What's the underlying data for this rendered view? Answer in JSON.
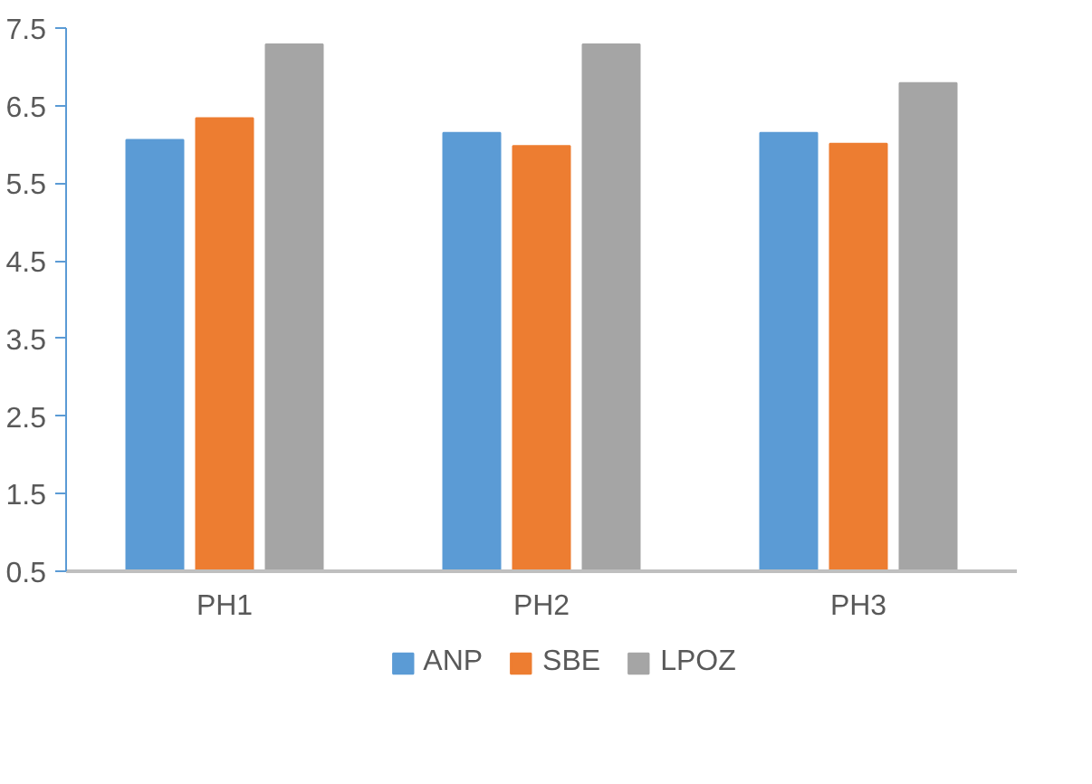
{
  "chart_data": {
    "type": "bar",
    "categories": [
      "PH1",
      "PH2",
      "PH3"
    ],
    "series": [
      {
        "name": "ANP",
        "color": "#5b9bd5",
        "values": [
          6.06,
          6.15,
          6.15
        ]
      },
      {
        "name": "SBE",
        "color": "#ed7d31",
        "values": [
          6.34,
          5.98,
          6.01
        ]
      },
      {
        "name": "LPOZ",
        "color": "#a5a5a5",
        "values": [
          7.29,
          7.29,
          6.79
        ]
      }
    ],
    "ylim": [
      0.5,
      7.5
    ],
    "yticks": [
      0.5,
      1.5,
      2.5,
      3.5,
      4.5,
      5.5,
      6.5,
      7.5
    ],
    "grid": false,
    "legend": "bottom"
  }
}
